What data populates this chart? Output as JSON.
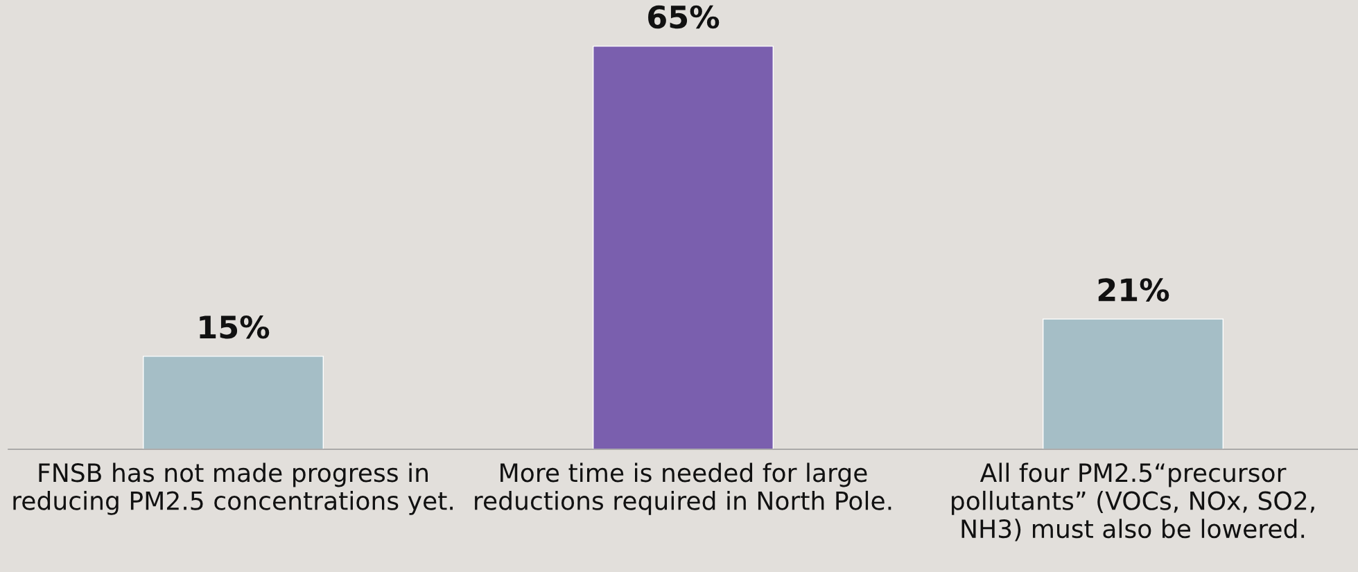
{
  "chart_data": {
    "type": "bar",
    "categories": [
      "FNSB has not made progress in\nreducing PM2.5 concentrations yet.",
      "More time is needed for large\nreductions required in North Pole.",
      "All four PM2.5“precursor\npollutants” (VOCs, NOx, SO2,\nNH3) must also be lowered."
    ],
    "values": [
      15,
      65,
      21
    ],
    "colors": [
      "#a5bec6",
      "#7a5fae",
      "#a5bec6"
    ],
    "value_labels": [
      "15%",
      "65%",
      "21%"
    ],
    "grid": false
  }
}
